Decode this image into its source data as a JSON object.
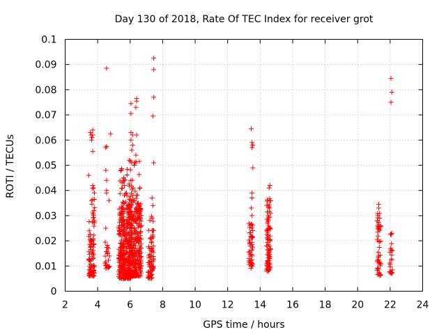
{
  "chart_data": {
    "type": "scatter",
    "title": "Day 130 of 2018, Rate Of TEC Index for receiver grot",
    "xlabel": "GPS time / hours",
    "ylabel": "ROTI / TECUs",
    "xlim": [
      2,
      24
    ],
    "ylim": [
      0,
      0.1
    ],
    "xticks": [
      2,
      4,
      6,
      8,
      10,
      12,
      14,
      16,
      18,
      20,
      22,
      24
    ],
    "yticks": [
      0,
      0.01,
      0.02,
      0.03,
      0.04,
      0.05,
      0.06,
      0.07,
      0.08,
      0.09,
      0.1
    ],
    "ytick_labels": [
      "0",
      "0.01",
      "0.02",
      "0.03",
      "0.04",
      "0.05",
      "0.06",
      "0.07",
      "0.08",
      "0.09",
      "0.1"
    ],
    "grid": true,
    "marker": "+",
    "color": "#ff0000",
    "clusters": [
      {
        "x": [
          3.45,
          3.8
        ],
        "y_min": 0.006,
        "y_max": 0.03,
        "n": 90
      },
      {
        "x": [
          3.5,
          3.85
        ],
        "y_min": 0.03,
        "y_max": 0.043,
        "n": 10
      },
      {
        "x": [
          4.45,
          4.75
        ],
        "y_min": 0.009,
        "y_max": 0.02,
        "n": 25
      },
      {
        "x": [
          5.3,
          6.1
        ],
        "y_min": 0.005,
        "y_max": 0.035,
        "n": 320
      },
      {
        "x": [
          5.35,
          6.1
        ],
        "y_min": 0.035,
        "y_max": 0.049,
        "n": 25
      },
      {
        "x": [
          5.9,
          6.7
        ],
        "y_min": 0.006,
        "y_max": 0.035,
        "n": 300
      },
      {
        "x": [
          5.95,
          6.6
        ],
        "y_min": 0.035,
        "y_max": 0.055,
        "n": 25
      },
      {
        "x": [
          7.1,
          7.45
        ],
        "y_min": 0.005,
        "y_max": 0.021,
        "n": 60
      },
      {
        "x": [
          7.15,
          7.45
        ],
        "y_min": 0.021,
        "y_max": 0.032,
        "n": 12
      },
      {
        "x": [
          13.3,
          13.55
        ],
        "y_min": 0.009,
        "y_max": 0.027,
        "n": 50
      },
      {
        "x": [
          14.4,
          14.65
        ],
        "y_min": 0.008,
        "y_max": 0.037,
        "n": 90
      },
      {
        "x": [
          21.2,
          21.45
        ],
        "y_min": 0.006,
        "y_max": 0.031,
        "n": 45
      },
      {
        "x": [
          21.95,
          22.15
        ],
        "y_min": 0.007,
        "y_max": 0.024,
        "n": 25
      }
    ],
    "points": [
      [
        3.55,
        0.063
      ],
      [
        3.6,
        0.062
      ],
      [
        3.65,
        0.061
      ],
      [
        3.7,
        0.064
      ],
      [
        3.62,
        0.06
      ],
      [
        3.7,
        0.062
      ],
      [
        3.7,
        0.0555
      ],
      [
        3.45,
        0.046
      ],
      [
        3.75,
        0.041
      ],
      [
        3.62,
        0.036
      ],
      [
        3.7,
        0.042
      ],
      [
        4.55,
        0.0885
      ],
      [
        4.5,
        0.057
      ],
      [
        4.55,
        0.0575
      ],
      [
        4.8,
        0.0625
      ],
      [
        4.5,
        0.048
      ],
      [
        4.55,
        0.044
      ],
      [
        4.55,
        0.04
      ],
      [
        4.55,
        0.039
      ],
      [
        4.7,
        0.036
      ],
      [
        4.5,
        0.025
      ],
      [
        6.05,
        0.0745
      ],
      [
        6.05,
        0.0705
      ],
      [
        6.4,
        0.0765
      ],
      [
        6.4,
        0.0755
      ],
      [
        6.35,
        0.073
      ],
      [
        6.05,
        0.063
      ],
      [
        6.15,
        0.062
      ],
      [
        6.4,
        0.062
      ],
      [
        6.05,
        0.06
      ],
      [
        6.15,
        0.058
      ],
      [
        6.1,
        0.056
      ],
      [
        5.95,
        0.052
      ],
      [
        6.1,
        0.051
      ],
      [
        6.25,
        0.05
      ],
      [
        5.6,
        0.045
      ],
      [
        5.5,
        0.043
      ],
      [
        5.65,
        0.042
      ],
      [
        6.6,
        0.041
      ],
      [
        7.45,
        0.0925
      ],
      [
        7.45,
        0.088
      ],
      [
        7.45,
        0.077
      ],
      [
        7.4,
        0.0695
      ],
      [
        7.45,
        0.051
      ],
      [
        7.35,
        0.037
      ],
      [
        7.4,
        0.034
      ],
      [
        13.45,
        0.0645
      ],
      [
        13.5,
        0.059
      ],
      [
        13.55,
        0.058
      ],
      [
        13.5,
        0.057
      ],
      [
        13.55,
        0.049
      ],
      [
        13.5,
        0.039
      ],
      [
        13.5,
        0.037
      ],
      [
        13.45,
        0.033
      ],
      [
        13.5,
        0.03
      ],
      [
        14.6,
        0.042
      ],
      [
        14.55,
        0.041
      ],
      [
        21.3,
        0.0345
      ],
      [
        21.3,
        0.033
      ],
      [
        21.25,
        0.03
      ],
      [
        21.35,
        0.029
      ],
      [
        22.05,
        0.0845
      ],
      [
        22.1,
        0.079
      ],
      [
        22.05,
        0.075
      ],
      [
        22.1,
        0.023
      ],
      [
        22.05,
        0.0225
      ]
    ]
  }
}
